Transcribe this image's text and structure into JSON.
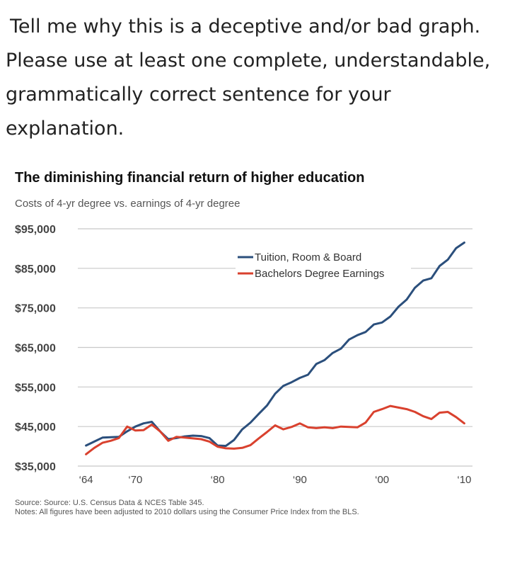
{
  "question": {
    "lines": [
      "Tell me why this is a deceptive and/or bad graph.",
      "Please use at least one complete, understandable,",
      "grammatically correct sentence for your",
      "explanation."
    ]
  },
  "chart_data": {
    "type": "line",
    "title": "The diminishing financial return of higher education",
    "subtitle": "Costs of 4-yr degree vs. earnings of 4-yr degree",
    "xlabel": "",
    "ylabel": "",
    "xlim": [
      1963,
      2011
    ],
    "ylim": [
      35000,
      95000
    ],
    "y_ticks": [
      35000,
      45000,
      55000,
      65000,
      75000,
      85000,
      95000
    ],
    "y_tick_labels": [
      "$35,000",
      "$45,000",
      "$55,000",
      "$65,000",
      "$75,000",
      "$85,000",
      "$95,000"
    ],
    "x_ticks": [
      1964,
      1970,
      1980,
      1990,
      2000,
      2010
    ],
    "x_tick_labels": [
      "‘64",
      "‘70",
      "‘80",
      "‘90",
      "‘00",
      "‘10"
    ],
    "grid": "horizontal",
    "legend_position": "upper-middle",
    "series": [
      {
        "name": "Tuition, Room & Board",
        "color": "#2b4f7c",
        "x": [
          1964,
          1965,
          1966,
          1967,
          1968,
          1969,
          1970,
          1971,
          1972,
          1973,
          1974,
          1975,
          1976,
          1977,
          1978,
          1979,
          1980,
          1981,
          1982,
          1983,
          1984,
          1985,
          1986,
          1987,
          1988,
          1989,
          1990,
          1991,
          1992,
          1993,
          1994,
          1995,
          1996,
          1997,
          1998,
          1999,
          2000,
          2001,
          2002,
          2003,
          2004,
          2005,
          2006,
          2007,
          2008,
          2009,
          2010
        ],
        "y": [
          40200,
          41200,
          42200,
          42300,
          42400,
          43800,
          45000,
          45800,
          46200,
          43800,
          41800,
          42100,
          42500,
          42700,
          42600,
          42100,
          40200,
          40100,
          41600,
          44300,
          46000,
          48200,
          50300,
          53300,
          55300,
          56200,
          57300,
          58100,
          60800,
          61800,
          63600,
          64700,
          67000,
          68100,
          68900,
          70800,
          71300,
          72800,
          75300,
          77100,
          80100,
          81900,
          82500,
          85600,
          87200,
          90100,
          91500
        ]
      },
      {
        "name": "Bachelors Degree Earnings",
        "color": "#d9412e",
        "x": [
          1964,
          1965,
          1966,
          1967,
          1968,
          1969,
          1970,
          1971,
          1972,
          1973,
          1974,
          1975,
          1976,
          1977,
          1978,
          1979,
          1980,
          1981,
          1982,
          1983,
          1984,
          1985,
          1986,
          1987,
          1988,
          1989,
          1990,
          1991,
          1992,
          1993,
          1994,
          1995,
          1996,
          1997,
          1998,
          1999,
          2000,
          2001,
          2002,
          2003,
          2004,
          2005,
          2006,
          2007,
          2008,
          2009,
          2010
        ],
        "y": [
          38000,
          39600,
          40900,
          41400,
          42100,
          45000,
          44000,
          44100,
          45500,
          43800,
          41400,
          42400,
          42200,
          42000,
          41800,
          41200,
          39900,
          39500,
          39400,
          39600,
          40300,
          42000,
          43600,
          45300,
          44300,
          44900,
          45800,
          44800,
          44600,
          44800,
          44600,
          45000,
          44900,
          44800,
          46000,
          48700,
          49400,
          50200,
          49800,
          49400,
          48700,
          47600,
          46900,
          48500,
          48700,
          47400,
          45800
        ]
      }
    ],
    "source": "Source: Source: U.S. Census Data & NCES Table 345.",
    "notes": "Notes: All figures have been adjusted to 2010 dollars using the Consumer Price Index from the BLS."
  }
}
